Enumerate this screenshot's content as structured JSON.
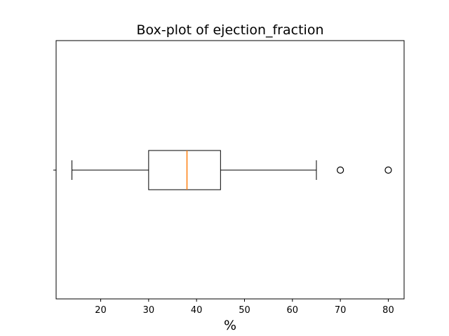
{
  "chart_data": {
    "type": "boxplot",
    "title": "Box-plot of ejection_fraction",
    "xlabel": "%",
    "ylabel": "",
    "orientation": "horizontal",
    "xlim": [
      10.7,
      83.3
    ],
    "xticks": [
      20,
      30,
      40,
      50,
      60,
      70,
      80
    ],
    "grid": false,
    "box": {
      "whisker_low": 14,
      "q1": 30,
      "median": 38,
      "q3": 45,
      "whisker_high": 65,
      "outliers": [
        70,
        80
      ]
    },
    "colors": {
      "box": "#000000",
      "median": "#ff7f0e",
      "outlier_edge": "#000000"
    }
  }
}
